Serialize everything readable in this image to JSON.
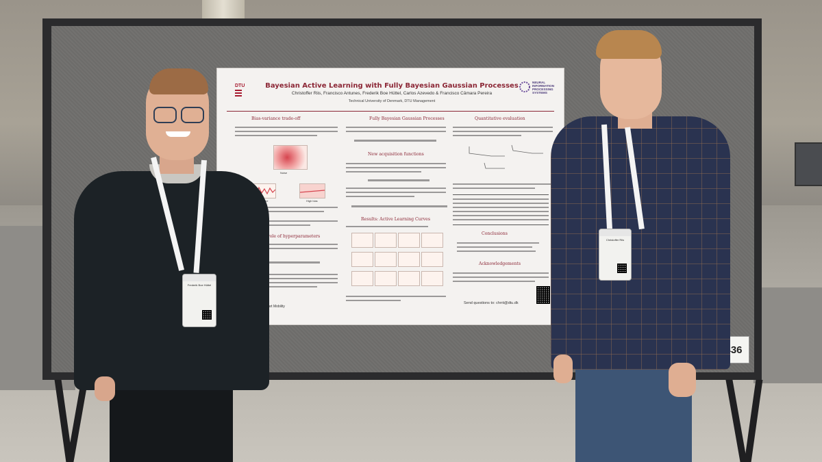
{
  "poster": {
    "title": "Bayesian Active Learning with Fully Bayesian Gaussian Processes",
    "authors": "Christoffer Riis, Francisco Antunes, Frederik Boe Hüttel, Carlos Azevedo & Francisco Câmara Pereira",
    "affiliation": "Technical University of Denmark, DTU Management",
    "dtu_logo_text": "DTU",
    "neurips_logo_text": [
      "NEURAL",
      "INFORMATION",
      "PROCESSING",
      "SYSTEMS"
    ],
    "sections": {
      "bias_variance": "Bias-variance trade-off",
      "fully_bayesian": "Fully Bayesian Gaussian Processes",
      "new_acquisition": "New acquisition functions",
      "results": "Results: Active Learning Curves",
      "role_hyper": "The role of hyperparameters",
      "quantitative": "Quantitative evaluation",
      "conclusions": "Conclusions",
      "acknowledgements": "Acknowledgements"
    },
    "plot_labels": {
      "high_variance": "High variance",
      "high_bias": "High bias",
      "noise": "Noise"
    },
    "footer": "Send questions to: chrrii@dtu.dk",
    "footer_left": "for Smart Mobility"
  },
  "booth": {
    "number": "436"
  },
  "badges": {
    "left_name": "Frederik Boe Hüttel",
    "right_name": "Christoffer Riis"
  },
  "colors": {
    "poster_accent": "#8b2635",
    "board": "#6d6c6a",
    "left_shirt": "#1c2226",
    "right_shirt": "#2a3350"
  }
}
